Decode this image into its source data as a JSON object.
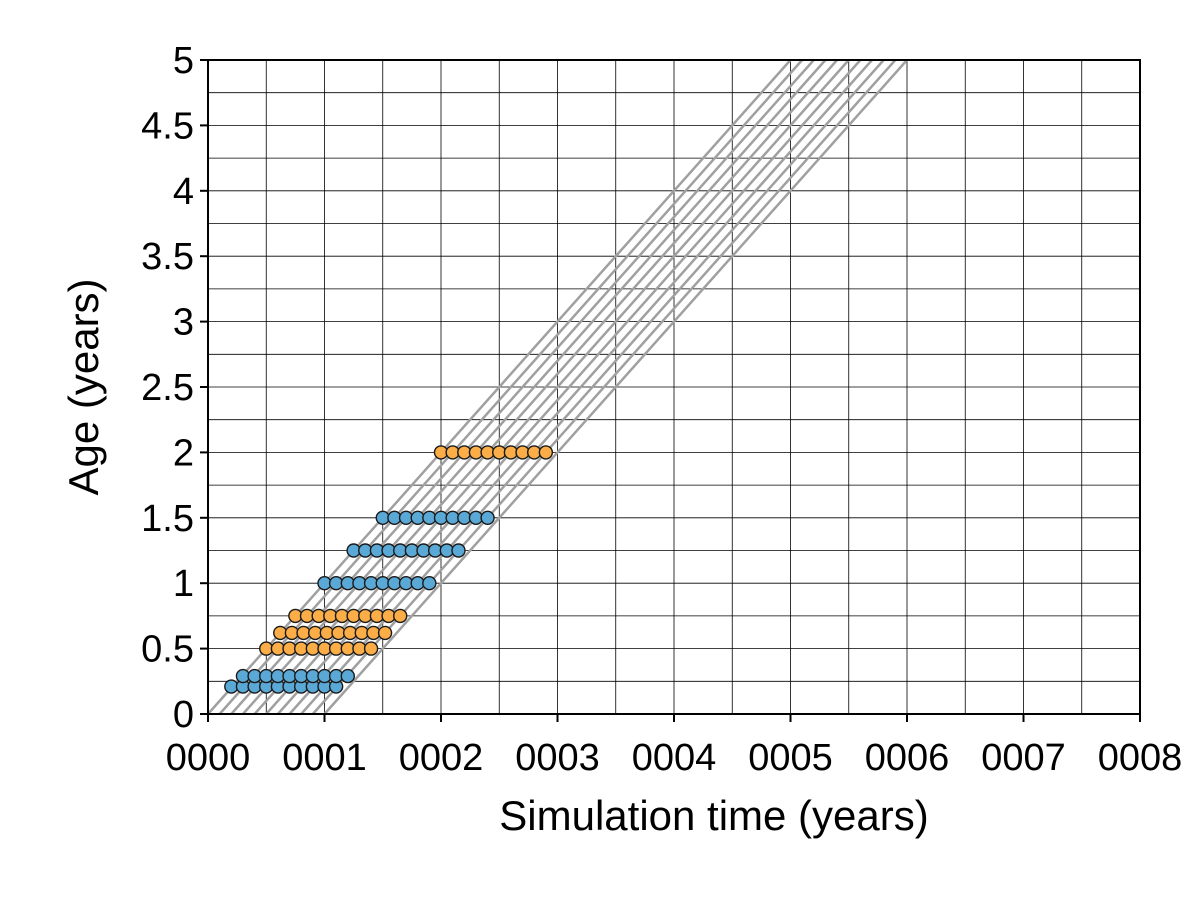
{
  "chart_data": {
    "type": "scatter",
    "title": "",
    "xlabel": "Simulation time (years)",
    "ylabel": "Age (years)",
    "xlim": [
      0,
      8
    ],
    "ylim": [
      0,
      5
    ],
    "grid": true,
    "x_ticks": [
      {
        "value": 0,
        "label": "0000"
      },
      {
        "value": 1,
        "label": "0001"
      },
      {
        "value": 2,
        "label": "0002"
      },
      {
        "value": 3,
        "label": "0003"
      },
      {
        "value": 4,
        "label": "0004"
      },
      {
        "value": 5,
        "label": "0005"
      },
      {
        "value": 6,
        "label": "0006"
      },
      {
        "value": 7,
        "label": "0007"
      },
      {
        "value": 8,
        "label": "0008"
      }
    ],
    "y_ticks": [
      {
        "value": 0,
        "label": "0"
      },
      {
        "value": 0.5,
        "label": "0.5"
      },
      {
        "value": 1,
        "label": "1"
      },
      {
        "value": 1.5,
        "label": "1.5"
      },
      {
        "value": 2,
        "label": "2"
      },
      {
        "value": 2.5,
        "label": "2.5"
      },
      {
        "value": 3,
        "label": "3"
      },
      {
        "value": 3.5,
        "label": "3.5"
      },
      {
        "value": 4,
        "label": "4"
      },
      {
        "value": 4.5,
        "label": "4.5"
      },
      {
        "value": 5,
        "label": "5"
      }
    ],
    "cohort_lines": {
      "color": "#a0a0a0",
      "start_x": [
        0.0,
        0.1,
        0.2,
        0.3,
        0.4,
        0.5,
        0.6,
        0.7,
        0.8,
        0.9,
        1.0
      ],
      "slope": 1
    },
    "groups": [
      {
        "color": "#5aa8d6",
        "age": 0.21,
        "x": [
          0.2,
          0.3,
          0.4,
          0.5,
          0.6,
          0.7,
          0.8,
          0.9,
          1.0,
          1.1
        ]
      },
      {
        "color": "#5aa8d6",
        "age": 0.29,
        "x": [
          0.3,
          0.4,
          0.5,
          0.6,
          0.7,
          0.8,
          0.9,
          1.0,
          1.1,
          1.2
        ]
      },
      {
        "color": "#fbad47",
        "age": 0.5,
        "x": [
          0.5,
          0.6,
          0.7,
          0.8,
          0.9,
          1.0,
          1.1,
          1.2,
          1.3,
          1.4
        ]
      },
      {
        "color": "#fbad47",
        "age": 0.62,
        "x": [
          0.62,
          0.72,
          0.82,
          0.92,
          1.02,
          1.12,
          1.22,
          1.32,
          1.42,
          1.52
        ]
      },
      {
        "color": "#fbad47",
        "age": 0.75,
        "x": [
          0.75,
          0.85,
          0.95,
          1.05,
          1.15,
          1.25,
          1.35,
          1.45,
          1.55,
          1.65
        ]
      },
      {
        "color": "#5aa8d6",
        "age": 1.0,
        "x": [
          1.0,
          1.1,
          1.2,
          1.3,
          1.4,
          1.5,
          1.6,
          1.7,
          1.8,
          1.9
        ]
      },
      {
        "color": "#5aa8d6",
        "age": 1.25,
        "x": [
          1.25,
          1.35,
          1.45,
          1.55,
          1.65,
          1.75,
          1.85,
          1.95,
          2.05,
          2.15
        ]
      },
      {
        "color": "#5aa8d6",
        "age": 1.5,
        "x": [
          1.5,
          1.6,
          1.7,
          1.8,
          1.9,
          2.0,
          2.1,
          2.2,
          2.3,
          2.4
        ]
      },
      {
        "color": "#fbad47",
        "age": 2.0,
        "x": [
          2.0,
          2.1,
          2.2,
          2.3,
          2.4,
          2.5,
          2.6,
          2.7,
          2.8,
          2.9
        ]
      }
    ]
  }
}
